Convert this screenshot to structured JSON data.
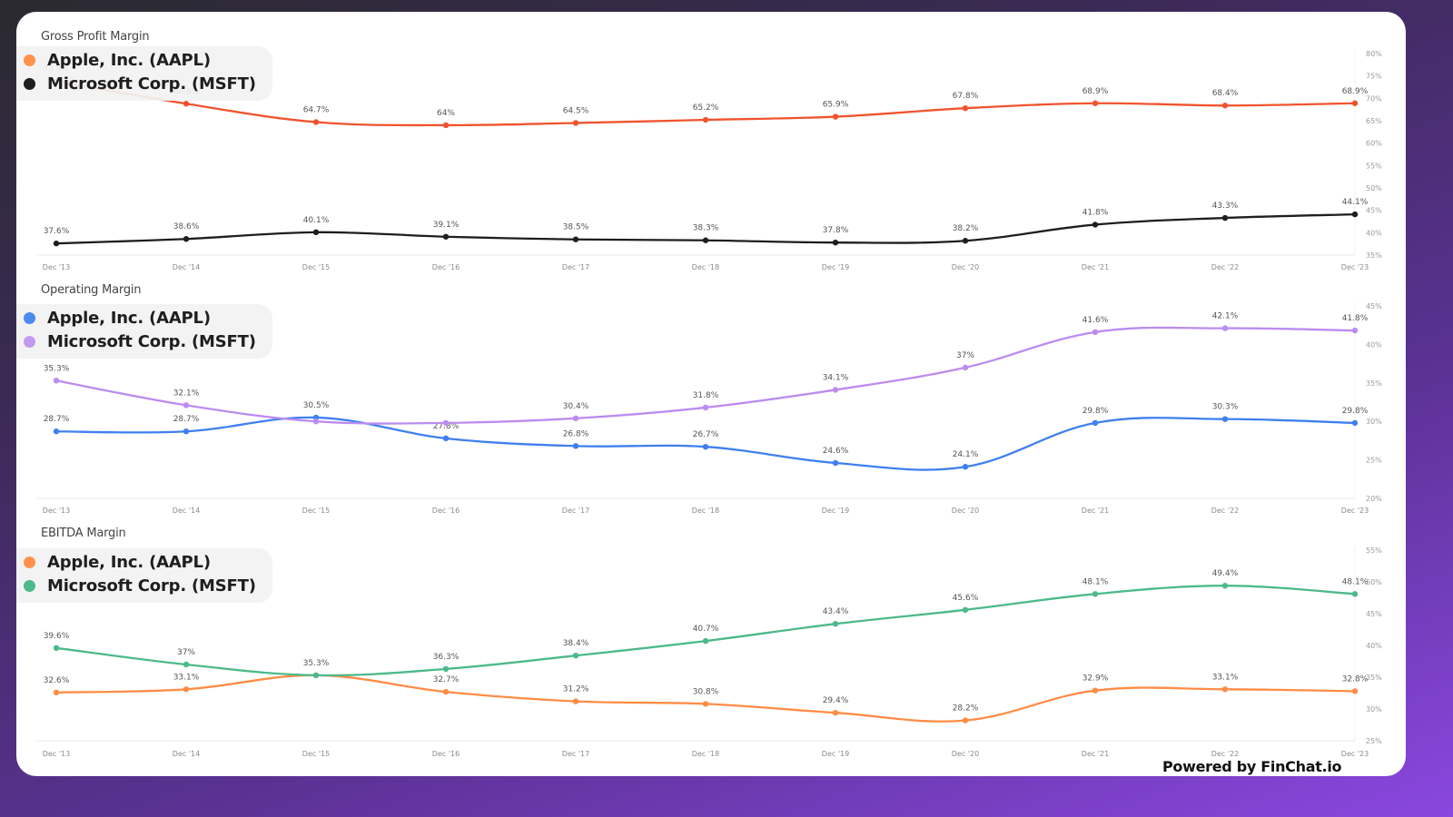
{
  "branding": {
    "powered_by": "Powered by FinChat.io"
  },
  "x_labels": [
    "Dec '13",
    "Dec '14",
    "Dec '15",
    "Dec '16",
    "Dec '17",
    "Dec '18",
    "Dec '19",
    "Dec '20",
    "Dec '21",
    "Dec '22",
    "Dec '23"
  ],
  "charts": [
    {
      "title": "Gross Profit Margin",
      "legend": [
        {
          "label": "Apple, Inc. (AAPL)",
          "dot_color": "#ff914d"
        },
        {
          "label": "Microsoft Corp. (MSFT)",
          "dot_color": "#1e1e1e"
        }
      ],
      "y_ticks": [
        "80%",
        "75%",
        "70%",
        "65%",
        "60%",
        "55%",
        "50%",
        "45%",
        "40%",
        "35%"
      ]
    },
    {
      "title": "Operating Margin",
      "legend": [
        {
          "label": "Apple, Inc. (AAPL)",
          "dot_color": "#4d8af0"
        },
        {
          "label": "Microsoft Corp. (MSFT)",
          "dot_color": "#c39af0"
        }
      ],
      "y_ticks": [
        "45%",
        "40%",
        "35%",
        "30%",
        "25%",
        "20%"
      ]
    },
    {
      "title": "EBITDA Margin",
      "legend": [
        {
          "label": "Apple, Inc. (AAPL)",
          "dot_color": "#ff914d"
        },
        {
          "label": "Microsoft Corp. (MSFT)",
          "dot_color": "#4cb98a"
        }
      ],
      "y_ticks": [
        "55%",
        "50%",
        "45%",
        "40%",
        "35%",
        "30%",
        "25%"
      ]
    }
  ],
  "chart_data": [
    {
      "type": "line",
      "title": "Gross Profit Margin",
      "categories": [
        "Dec '13",
        "Dec '14",
        "Dec '15",
        "Dec '16",
        "Dec '17",
        "Dec '18",
        "Dec '19",
        "Dec '20",
        "Dec '21",
        "Dec '22",
        "Dec '23"
      ],
      "series": [
        {
          "name": "Apple, Inc. (AAPL)",
          "color": "#f0532e",
          "values": [
            73.8,
            68.8,
            64.7,
            64.0,
            64.5,
            65.2,
            65.9,
            67.8,
            68.9,
            68.4,
            68.9
          ],
          "labels": [
            "73.8%",
            "68.8%",
            "64.7%",
            "64%",
            "64.5%",
            "65.2%",
            "65.9%",
            "67.8%",
            "68.9%",
            "68.4%",
            "68.9%"
          ]
        },
        {
          "name": "Microsoft Corp. (MSFT)",
          "color": "#1e1e1e",
          "values": [
            37.6,
            38.6,
            40.1,
            39.1,
            38.5,
            38.3,
            37.8,
            38.2,
            41.8,
            43.3,
            44.1
          ],
          "labels": [
            "37.6%",
            "38.6%",
            "40.1%",
            "39.1%",
            "38.5%",
            "38.3%",
            "37.8%",
            "38.2%",
            "41.8%",
            "43.3%",
            "44.1%"
          ]
        }
      ],
      "xlabel": "",
      "ylabel": "",
      "ylim": [
        35,
        80
      ],
      "y_axis_position": "right",
      "grid": false,
      "legend_position": "top-left"
    },
    {
      "type": "line",
      "title": "Operating Margin",
      "categories": [
        "Dec '13",
        "Dec '14",
        "Dec '15",
        "Dec '16",
        "Dec '17",
        "Dec '18",
        "Dec '19",
        "Dec '20",
        "Dec '21",
        "Dec '22",
        "Dec '23"
      ],
      "series": [
        {
          "name": "Apple, Inc. (AAPL)",
          "color": "#3f7ff0",
          "values": [
            28.7,
            28.7,
            30.5,
            27.8,
            26.8,
            26.7,
            24.6,
            24.1,
            29.8,
            30.3,
            29.8
          ],
          "labels": [
            "28.7%",
            "28.7%",
            "30.5%",
            "27.8%",
            "26.8%",
            "26.7%",
            "24.6%",
            "24.1%",
            "29.8%",
            "30.3%",
            "29.8%"
          ]
        },
        {
          "name": "Microsoft Corp. (MSFT)",
          "color": "#bb8cf0",
          "values": [
            35.3,
            32.1,
            30.0,
            29.8,
            30.4,
            31.8,
            34.1,
            37.0,
            41.6,
            42.1,
            41.8
          ],
          "labels": [
            "35.3%",
            "32.1%",
            "",
            "",
            "30.4%",
            "31.8%",
            "34.1%",
            "37%",
            "41.6%",
            "42.1%",
            "41.8%"
          ]
        }
      ],
      "xlabel": "",
      "ylabel": "",
      "ylim": [
        20,
        45
      ],
      "y_axis_position": "right",
      "grid": false,
      "legend_position": "top-left"
    },
    {
      "type": "line",
      "title": "EBITDA Margin",
      "categories": [
        "Dec '13",
        "Dec '14",
        "Dec '15",
        "Dec '16",
        "Dec '17",
        "Dec '18",
        "Dec '19",
        "Dec '20",
        "Dec '21",
        "Dec '22",
        "Dec '23"
      ],
      "series": [
        {
          "name": "Apple, Inc. (AAPL)",
          "color": "#ff8c45",
          "values": [
            32.6,
            33.1,
            35.3,
            32.7,
            31.2,
            30.8,
            29.4,
            28.2,
            32.9,
            33.1,
            32.8
          ],
          "labels": [
            "32.6%",
            "33.1%",
            "",
            "32.7%",
            "31.2%",
            "30.8%",
            "29.4%",
            "28.2%",
            "32.9%",
            "33.1%",
            "32.8%"
          ]
        },
        {
          "name": "Microsoft Corp. (MSFT)",
          "color": "#4cb98a",
          "values": [
            39.6,
            37.0,
            35.3,
            36.3,
            38.4,
            40.7,
            43.4,
            45.6,
            48.1,
            49.4,
            48.1
          ],
          "labels": [
            "39.6%",
            "37%",
            "35.3%",
            "36.3%",
            "38.4%",
            "40.7%",
            "43.4%",
            "45.6%",
            "48.1%",
            "49.4%",
            "48.1%"
          ]
        }
      ],
      "xlabel": "",
      "ylabel": "",
      "ylim": [
        25,
        55
      ],
      "y_axis_position": "right",
      "grid": false,
      "legend_position": "top-left"
    }
  ]
}
